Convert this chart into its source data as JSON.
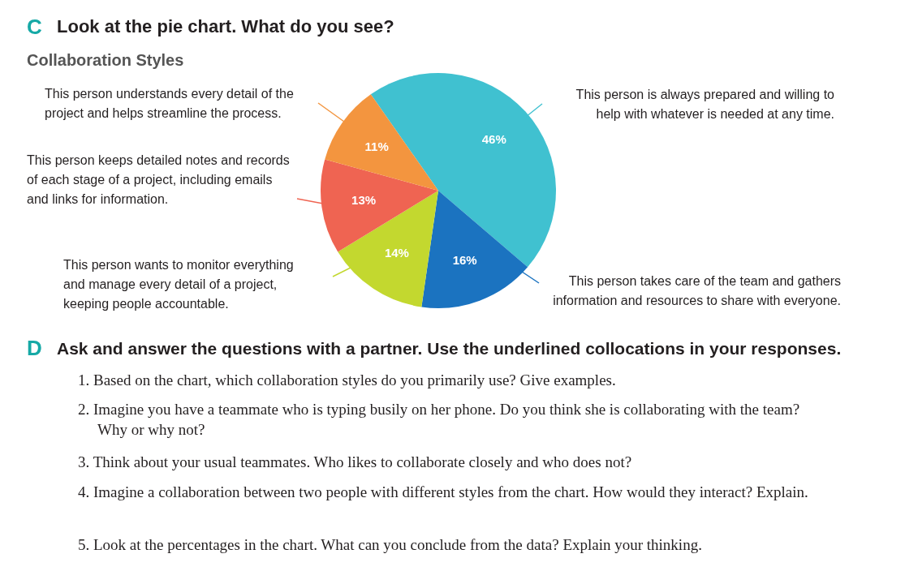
{
  "chart_data": {
    "type": "pie",
    "title": "Look at the pie chart. What do you see?",
    "subtitle": "Collaboration Styles",
    "categories": [
      "This person is always prepared and willing to help with whatever is needed at any time.",
      "This person takes care of the team and gathers information and resources to share with everyone.",
      "This person wants to monitor everything and manage every detail of a project, keeping people accountable.",
      "This person keeps detailed notes and records of each stage of a project, including emails and links for information.",
      "This person understands every detail of the project and helps streamline the process."
    ],
    "values": [
      46,
      16,
      14,
      13,
      11
    ],
    "colors": [
      "#40c1d0",
      "#1b73c0",
      "#c3d82f",
      "#ef6452",
      "#f3953f"
    ],
    "value_labels": [
      "46%",
      "16%",
      "14%",
      "13%",
      "11%"
    ],
    "annotations": [
      "C",
      "D",
      "Ask and answer the questions with a partner. Use the underlined collocations in your responses.",
      "1. Based on the chart, which collaboration styles do you primarily use? Give examples.",
      "2. Imagine you have a teammate who is typing busily on her phone. Do you think she is collaborating with the team? Why or why not?",
      "3. Think about your usual teammates. Who likes to collaborate closely and who does not?",
      "4. Imagine a collaboration between two people with different styles from the chart. How would they interact? Explain.",
      "5. Look at the percentages in the chart. What can you conclude from the data? Explain your thinking."
    ]
  }
}
